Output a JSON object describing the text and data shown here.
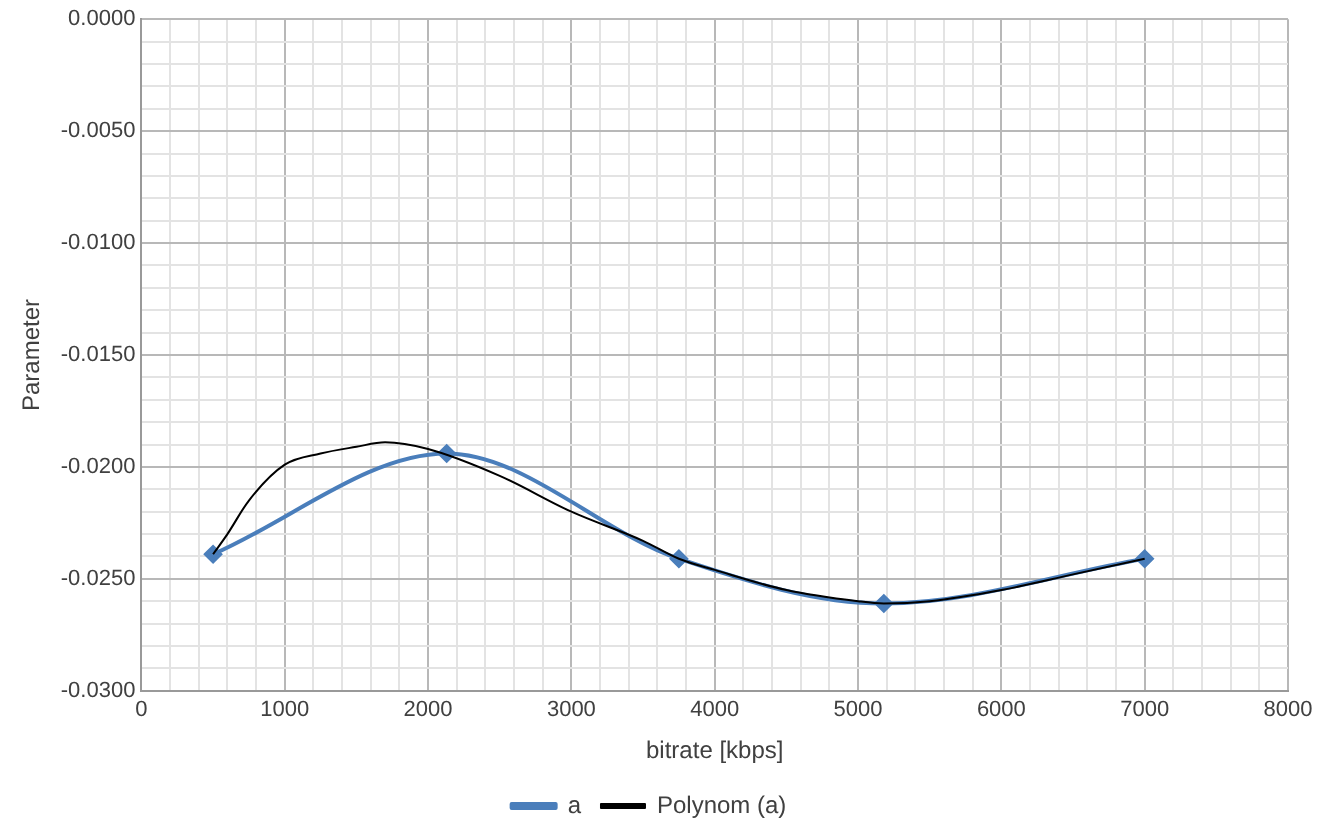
{
  "chart_data": {
    "type": "line",
    "xlabel": "bitrate [kbps]",
    "ylabel": "Parameter",
    "series": [
      {
        "name": "a",
        "color": "#4a7ebb",
        "x": [
          500,
          2130,
          3750,
          5180,
          7000
        ],
        "values": [
          -0.0239,
          -0.0194,
          -0.0241,
          -0.0261,
          -0.0241
        ],
        "marker": "diamond"
      },
      {
        "name": "Polynom (a)",
        "color": "#000000",
        "x": [
          500,
          600,
          750,
          1000,
          1250,
          1500,
          1700,
          2000,
          2500,
          3000,
          3500,
          3750,
          4000,
          4500,
          5000,
          5180,
          5500,
          6000,
          6500,
          7000
        ],
        "values": [
          -0.0239,
          -0.023,
          -0.0215,
          -0.0199,
          -0.0194,
          -0.0191,
          -0.0189,
          -0.0192,
          -0.0204,
          -0.022,
          -0.0233,
          -0.0241,
          -0.0246,
          -0.0255,
          -0.026,
          -0.0261,
          -0.026,
          -0.0255,
          -0.0248,
          -0.0241
        ],
        "marker": "none"
      }
    ],
    "xlim": [
      0,
      8000
    ],
    "ylim": [
      -0.03,
      0
    ],
    "xticks": [
      0,
      {
        "value": 200,
        "label": null
      },
      {
        "value": 400,
        "label": null
      },
      {
        "value": 600,
        "label": null
      },
      {
        "value": 800,
        "label": null
      },
      1000,
      {
        "value": 1200,
        "label": null
      },
      {
        "value": 1400,
        "label": null
      },
      {
        "value": 1600,
        "label": null
      },
      {
        "value": 1800,
        "label": null
      },
      2000,
      {
        "value": 2200,
        "label": null
      },
      {
        "value": 2400,
        "label": null
      },
      {
        "value": 2600,
        "label": null
      },
      {
        "value": 2800,
        "label": null
      },
      3000,
      {
        "value": 3200,
        "label": null
      },
      {
        "value": 3400,
        "label": null
      },
      {
        "value": 3600,
        "label": null
      },
      {
        "value": 3800,
        "label": null
      },
      4000,
      {
        "value": 4200,
        "label": null
      },
      {
        "value": 4400,
        "label": null
      },
      {
        "value": 4600,
        "label": null
      },
      {
        "value": 4800,
        "label": null
      },
      5000,
      {
        "value": 5200,
        "label": null
      },
      {
        "value": 5400,
        "label": null
      },
      {
        "value": 5600,
        "label": null
      },
      {
        "value": 5800,
        "label": null
      },
      6000,
      {
        "value": 6200,
        "label": null
      },
      {
        "value": 6400,
        "label": null
      },
      {
        "value": 6600,
        "label": null
      },
      {
        "value": 6800,
        "label": null
      },
      7000,
      {
        "value": 7200,
        "label": null
      },
      {
        "value": 7400,
        "label": null
      },
      {
        "value": 7600,
        "label": null
      },
      {
        "value": 7800,
        "label": null
      },
      8000
    ],
    "yticks": [
      {
        "value": -0.03,
        "label": "-0.0300"
      },
      {
        "value": -0.029,
        "label": null
      },
      {
        "value": -0.028,
        "label": null
      },
      {
        "value": -0.027,
        "label": null
      },
      {
        "value": -0.026,
        "label": null
      },
      {
        "value": -0.025,
        "label": "-0.0250"
      },
      {
        "value": -0.024,
        "label": null
      },
      {
        "value": -0.023,
        "label": null
      },
      {
        "value": -0.022,
        "label": null
      },
      {
        "value": -0.021,
        "label": null
      },
      {
        "value": -0.02,
        "label": "-0.0200"
      },
      {
        "value": -0.019,
        "label": null
      },
      {
        "value": -0.018,
        "label": null
      },
      {
        "value": -0.017,
        "label": null
      },
      {
        "value": -0.016,
        "label": null
      },
      {
        "value": -0.015,
        "label": "-0.0150"
      },
      {
        "value": -0.014,
        "label": null
      },
      {
        "value": -0.013,
        "label": null
      },
      {
        "value": -0.012,
        "label": null
      },
      {
        "value": -0.011,
        "label": null
      },
      {
        "value": -0.01,
        "label": "-0.0100"
      },
      {
        "value": -0.009,
        "label": null
      },
      {
        "value": -0.008,
        "label": null
      },
      {
        "value": -0.007,
        "label": null
      },
      {
        "value": -0.006,
        "label": null
      },
      {
        "value": -0.005,
        "label": "-0.0050"
      },
      {
        "value": -0.004,
        "label": null
      },
      {
        "value": -0.003,
        "label": null
      },
      {
        "value": -0.002,
        "label": null
      },
      {
        "value": -0.001,
        "label": null
      },
      {
        "value": 0,
        "label": "0.0000"
      }
    ],
    "grid": true,
    "legend": "bottom"
  }
}
